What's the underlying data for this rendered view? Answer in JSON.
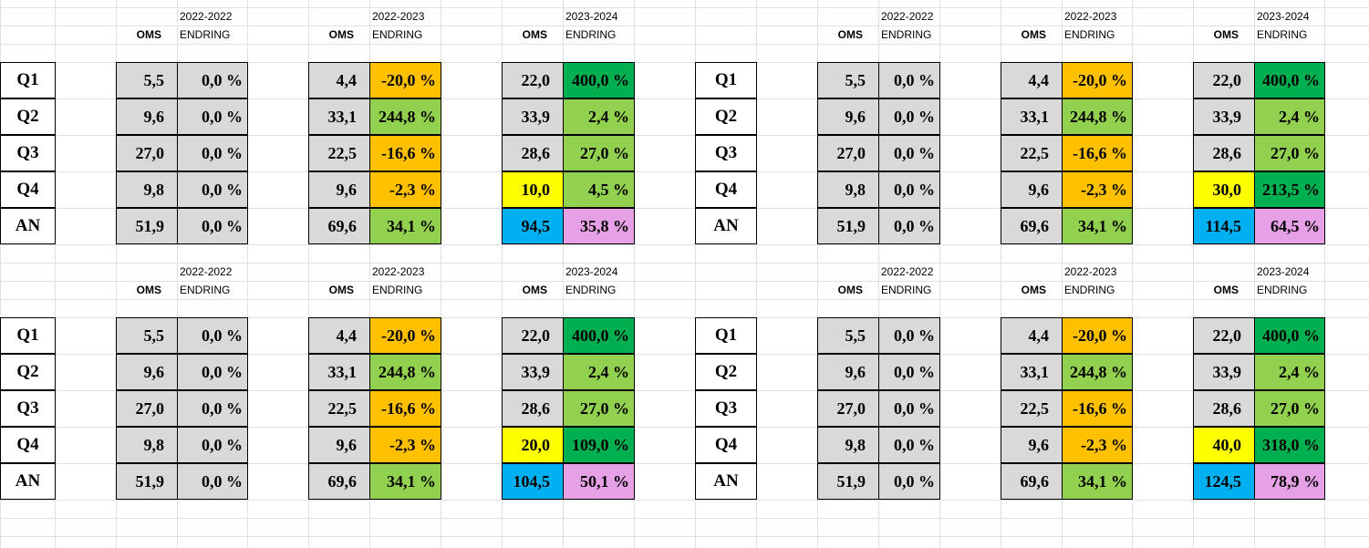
{
  "row_labels": [
    "Q1",
    "Q2",
    "Q3",
    "Q4",
    "AN"
  ],
  "headers": {
    "oms": "OMS",
    "endring": "ENDRING",
    "year1": "2022-2022",
    "year2": "2022-2023",
    "year3": "2023-2024"
  },
  "colors": {
    "grey": "#d9d9d9",
    "orange": "#ffc000",
    "light_green": "#92d050",
    "dark_green": "#00b050",
    "yellow": "#ffff00",
    "blue": "#00b0f0",
    "pink": "#e6a0e6",
    "gridline": "#e1e1e1"
  },
  "blocks": [
    {
      "group_2022_2022": {
        "oms": [
          "5,5",
          "9,6",
          "27,0",
          "9,8",
          "51,9"
        ],
        "endring": [
          "0,0 %",
          "0,0 %",
          "0,0 %",
          "0,0 %",
          "0,0 %"
        ]
      },
      "group_2022_2023": {
        "oms": [
          "4,4",
          "33,1",
          "22,5",
          "9,6",
          "69,6"
        ],
        "endring": [
          "-20,0 %",
          "244,8 %",
          "-16,6 %",
          "-2,3 %",
          "34,1 %"
        ]
      },
      "group_2023_2024": {
        "oms": [
          "22,0",
          "33,9",
          "28,6",
          "10,0",
          "94,5"
        ],
        "endring": [
          "400,0 %",
          "2,4 %",
          "27,0 %",
          "4,5 %",
          "35,8 %"
        ]
      }
    },
    {
      "group_2022_2022": {
        "oms": [
          "5,5",
          "9,6",
          "27,0",
          "9,8",
          "51,9"
        ],
        "endring": [
          "0,0 %",
          "0,0 %",
          "0,0 %",
          "0,0 %",
          "0,0 %"
        ]
      },
      "group_2022_2023": {
        "oms": [
          "4,4",
          "33,1",
          "22,5",
          "9,6",
          "69,6"
        ],
        "endring": [
          "-20,0 %",
          "244,8 %",
          "-16,6 %",
          "-2,3 %",
          "34,1 %"
        ]
      },
      "group_2023_2024": {
        "oms": [
          "22,0",
          "33,9",
          "28,6",
          "30,0",
          "114,5"
        ],
        "endring": [
          "400,0 %",
          "2,4 %",
          "27,0 %",
          "213,5 %",
          "64,5 %"
        ]
      }
    },
    {
      "group_2022_2022": {
        "oms": [
          "5,5",
          "9,6",
          "27,0",
          "9,8",
          "51,9"
        ],
        "endring": [
          "0,0 %",
          "0,0 %",
          "0,0 %",
          "0,0 %",
          "0,0 %"
        ]
      },
      "group_2022_2023": {
        "oms": [
          "4,4",
          "33,1",
          "22,5",
          "9,6",
          "69,6"
        ],
        "endring": [
          "-20,0 %",
          "244,8 %",
          "-16,6 %",
          "-2,3 %",
          "34,1 %"
        ]
      },
      "group_2023_2024": {
        "oms": [
          "22,0",
          "33,9",
          "28,6",
          "20,0",
          "104,5"
        ],
        "endring": [
          "400,0 %",
          "2,4 %",
          "27,0 %",
          "109,0 %",
          "50,1 %"
        ]
      }
    },
    {
      "group_2022_2022": {
        "oms": [
          "5,5",
          "9,6",
          "27,0",
          "9,8",
          "51,9"
        ],
        "endring": [
          "0,0 %",
          "0,0 %",
          "0,0 %",
          "0,0 %",
          "0,0 %"
        ]
      },
      "group_2022_2023": {
        "oms": [
          "4,4",
          "33,1",
          "22,5",
          "9,6",
          "69,6"
        ],
        "endring": [
          "-20,0 %",
          "244,8 %",
          "-16,6 %",
          "-2,3 %",
          "34,1 %"
        ]
      },
      "group_2023_2024": {
        "oms": [
          "22,0",
          "33,9",
          "28,6",
          "40,0",
          "124,5"
        ],
        "endring": [
          "400,0 %",
          "2,4 %",
          "27,0 %",
          "318,0 %",
          "78,9 %"
        ]
      }
    }
  ]
}
